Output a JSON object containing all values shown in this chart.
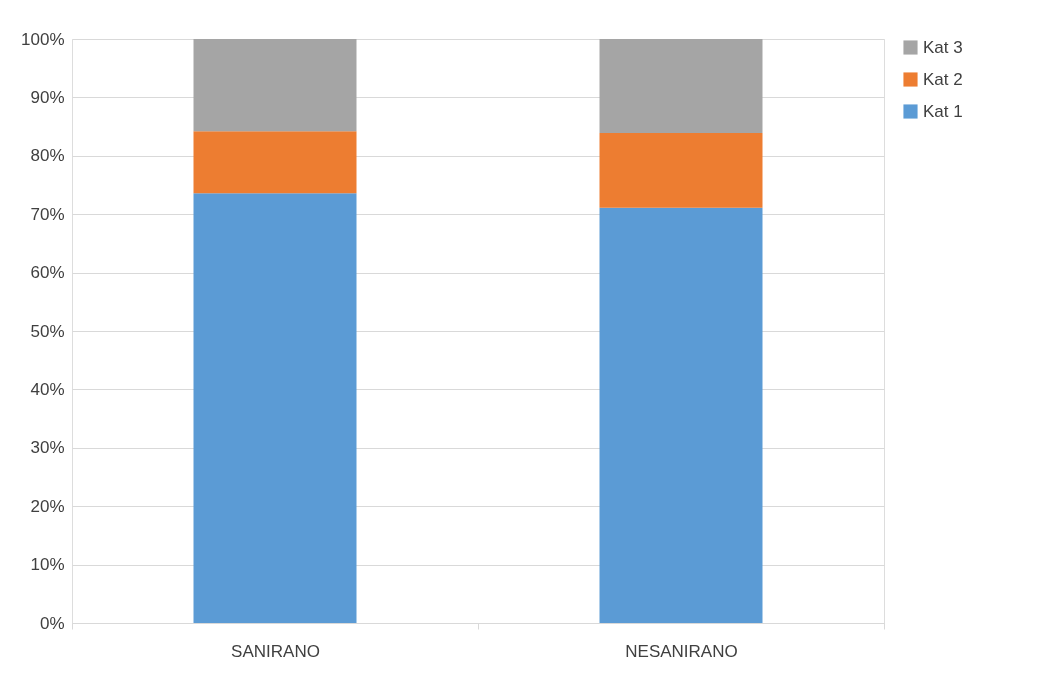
{
  "chart_data": {
    "type": "bar",
    "stacked": true,
    "categories": [
      "SANIRANO",
      "NESANIRANO"
    ],
    "series": [
      {
        "name": "Kat 1",
        "color": "#5b9bd5",
        "values": [
          73.6,
          71.1
        ]
      },
      {
        "name": "Kat 2",
        "color": "#ed7d31",
        "values": [
          10.6,
          12.8
        ]
      },
      {
        "name": "Kat 3",
        "color": "#a5a5a5",
        "values": [
          15.8,
          16.1
        ]
      }
    ],
    "ylim": [
      0,
      100
    ],
    "yticks": [
      {
        "value": 0,
        "label": "0%"
      },
      {
        "value": 10,
        "label": "10%"
      },
      {
        "value": 20,
        "label": "20%"
      },
      {
        "value": 30,
        "label": "30%"
      },
      {
        "value": 40,
        "label": "40%"
      },
      {
        "value": 50,
        "label": "50%"
      },
      {
        "value": 60,
        "label": "60%"
      },
      {
        "value": 70,
        "label": "70%"
      },
      {
        "value": 80,
        "label": "80%"
      },
      {
        "value": 90,
        "label": "90%"
      },
      {
        "value": 100,
        "label": "100%"
      }
    ],
    "grid": "y",
    "legend": "right"
  }
}
